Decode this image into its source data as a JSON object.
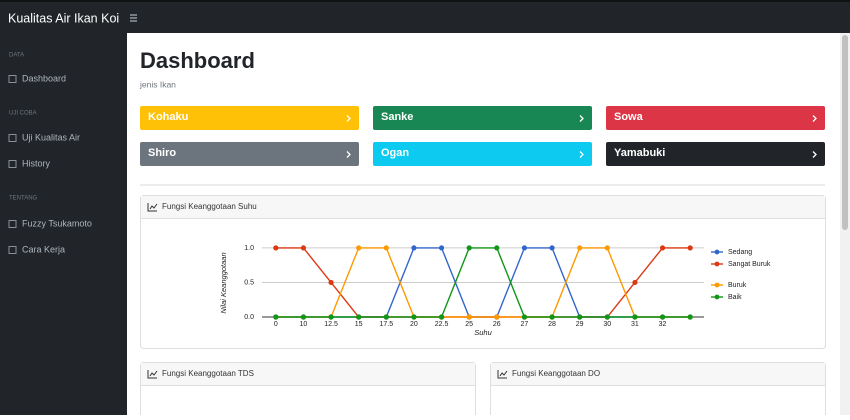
{
  "navbar": {
    "brand": "Kualitas Air Ikan Koi"
  },
  "sidebar": {
    "sections": [
      {
        "heading": "DATA",
        "items": [
          "Dashboard"
        ]
      },
      {
        "heading": "UJI COBA",
        "items": [
          "Uji Kualitas Air",
          "History"
        ]
      },
      {
        "heading": "TENTANG",
        "items": [
          "Fuzzy Tsukamoto",
          "Cara Kerja"
        ]
      }
    ]
  },
  "header": {
    "title": "Dashboard",
    "subtitle": "jenis Ikan"
  },
  "cards": [
    {
      "label": "Kohaku",
      "color": "#ffc107"
    },
    {
      "label": "Sanke",
      "color": "#198754"
    },
    {
      "label": "Sowa",
      "color": "#dc3545"
    },
    {
      "label": "Shiro",
      "color": "#6c757d"
    },
    {
      "label": "Ogan",
      "color": "#0dcaf0"
    },
    {
      "label": "Yamabuki",
      "color": "#212529"
    }
  ],
  "panels": [
    {
      "title": "Fungsi Keanggotaan TDS"
    },
    {
      "title": "Fungsi Keanggotaan DO"
    }
  ],
  "chart_data": {
    "type": "line",
    "title": "Fungsi Keanggotaan Suhu",
    "x_label": "Suhu",
    "y_label": "Nilai Keanggotaan",
    "categories": [
      "0",
      "10",
      "12.5",
      "15",
      "17.5",
      "20",
      "22.5",
      "25",
      "26",
      "27",
      "28",
      "29",
      "30",
      "31",
      "32",
      null
    ],
    "series": [
      {
        "name": "Sedang",
        "color": "#3366cc",
        "values": [
          0,
          0,
          0,
          0,
          0,
          1,
          1,
          0,
          0,
          1,
          1,
          0,
          0,
          0,
          0,
          0
        ]
      },
      {
        "name": "Sangat Buruk",
        "color": "#dc3912",
        "values": [
          1,
          1,
          0.5,
          0,
          0,
          0,
          0,
          0,
          0,
          0,
          0,
          0,
          0,
          0.5,
          1,
          1
        ]
      },
      {
        "name": "Buruk",
        "color": "#ff9900",
        "values": [
          0,
          0,
          0,
          1,
          1,
          0,
          0,
          0,
          0,
          0,
          0,
          1,
          1,
          0,
          0,
          0
        ]
      },
      {
        "name": "Baik",
        "color": "#109618",
        "values": [
          0,
          0,
          0,
          0,
          0,
          0,
          0,
          1,
          1,
          0,
          0,
          0,
          0,
          0,
          0,
          0
        ]
      }
    ],
    "ylim": [
      0,
      1.1
    ],
    "yticks": [
      {
        "value": 0,
        "label": "0.0"
      },
      {
        "value": 0.5,
        "label": "0.5"
      },
      {
        "value": 1,
        "label": "1.0"
      }
    ],
    "grid": true,
    "legend": "right"
  }
}
